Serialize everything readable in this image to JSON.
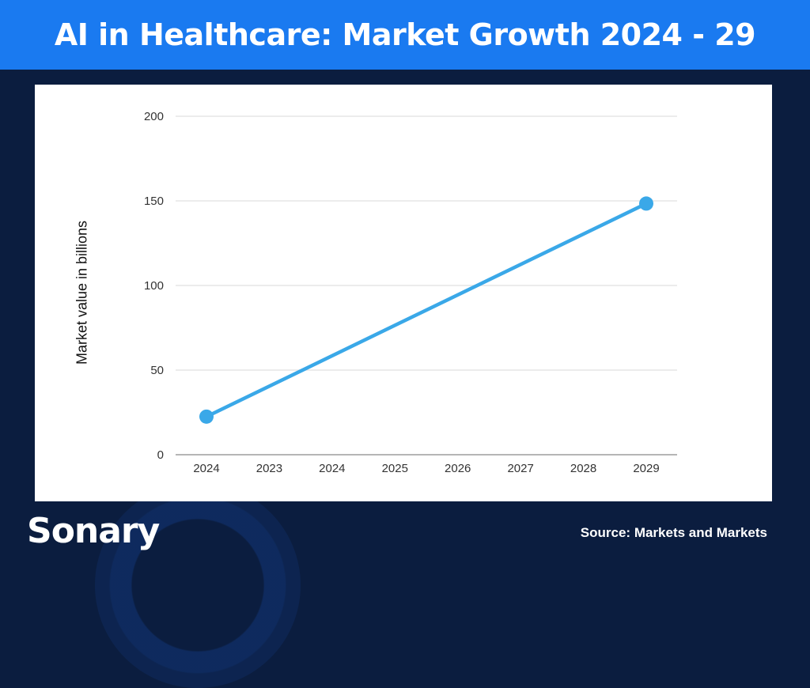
{
  "header": {
    "title": "AI in Healthcare: Market Growth 2024 - 29"
  },
  "footer": {
    "brand": "Sonary",
    "source": "Source: Markets and Markets"
  },
  "colors": {
    "header_bg": "#1a7af0",
    "page_bg": "#0b1d3f",
    "line": "#3aa8e8",
    "grid": "#e6e6e6"
  },
  "chart_data": {
    "type": "line",
    "title": "",
    "xlabel": "",
    "ylabel": "Market value in billions",
    "categories": [
      "2024",
      "2023",
      "2024",
      "2025",
      "2026",
      "2027",
      "2028",
      "2029"
    ],
    "yticks": [
      0,
      50,
      100,
      150,
      200
    ],
    "ylim": [
      0,
      200
    ],
    "grid": true,
    "series": [
      {
        "points": [
          {
            "category_index": 0,
            "value": 22.5
          },
          {
            "category_index": 7,
            "value": 148.4
          }
        ]
      }
    ]
  }
}
